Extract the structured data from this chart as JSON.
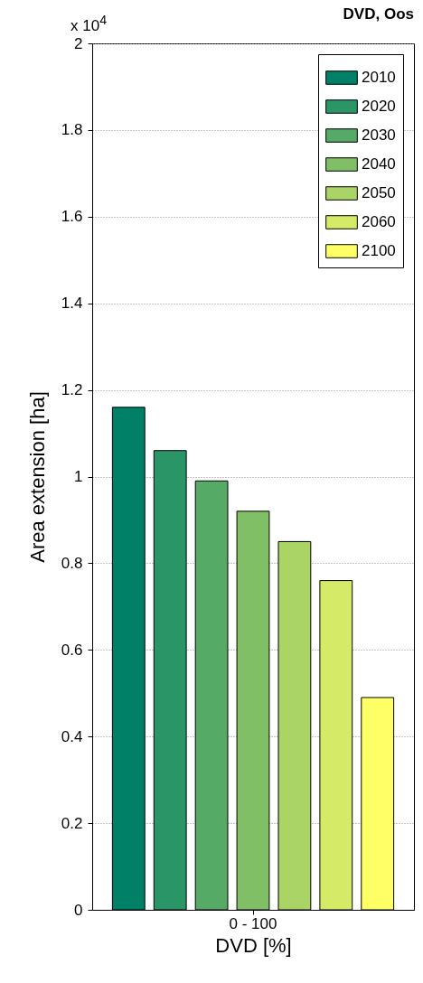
{
  "chart_data": {
    "type": "bar",
    "title": "DVD, Oos",
    "xlabel": "DVD [%]",
    "ylabel": "Area extension [ha]",
    "annotations": [
      "x 10$^{4}$"
    ],
    "categories": [
      "0 - 100"
    ],
    "series": [
      {
        "name": "2010",
        "color": "#008066",
        "values": [
          1.16
        ]
      },
      {
        "name": "2020",
        "color": "#2a9566",
        "values": [
          1.06
        ]
      },
      {
        "name": "2030",
        "color": "#55aa66",
        "values": [
          0.99
        ]
      },
      {
        "name": "2040",
        "color": "#80bf66",
        "values": [
          0.92
        ]
      },
      {
        "name": "2050",
        "color": "#aad566",
        "values": [
          0.85
        ]
      },
      {
        "name": "2060",
        "color": "#d5ea66",
        "values": [
          0.76
        ]
      },
      {
        "name": "2100",
        "color": "#ffff66",
        "values": [
          0.49
        ]
      }
    ],
    "ylim": [
      0,
      2
    ],
    "yticks": [
      0,
      0.2,
      0.4,
      0.6,
      0.8,
      1,
      1.2,
      1.4,
      1.6,
      1.8,
      2
    ],
    "grid": "y",
    "legend": "top right"
  }
}
